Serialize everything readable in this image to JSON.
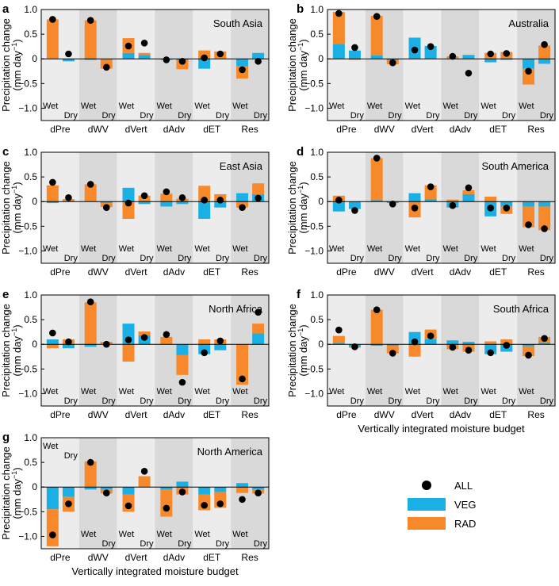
{
  "figure": {
    "y_axis_label_line1": "Precipitation change",
    "y_axis_label_line2_prefix": "(mm day",
    "y_axis_label_line2_sup": "−1",
    "y_axis_label_line2_suffix": ")",
    "x_axis_label": "Vertically integrated moisture budget",
    "colors": {
      "ALL": "#000000",
      "VEG": "#1ab0e6",
      "RAD": "#f7892b",
      "band_light": "#ececec",
      "band_dark": "#d9d9d9"
    },
    "legend": [
      {
        "key": "ALL",
        "label": "ALL",
        "marker": "dot"
      },
      {
        "key": "VEG",
        "label": "VEG",
        "marker": "rect"
      },
      {
        "key": "RAD",
        "label": "RAD",
        "marker": "rect"
      }
    ]
  },
  "chart_data": [
    {
      "panel": "a",
      "title": "South Asia",
      "type": "bar",
      "categories": [
        "dPre",
        "dWV",
        "dVert",
        "dAdv",
        "dET",
        "Res"
      ],
      "sublabels": [
        "Wet",
        "Dry"
      ],
      "sublabel_position": "bottom",
      "ylim": [
        -1.25,
        1.0
      ],
      "yticks": [
        1.0,
        0.5,
        0,
        -0.5,
        -1.0
      ],
      "yticklabels": [
        "1.0",
        "0.5",
        "0",
        "−0.5",
        "−1.0"
      ],
      "xlabel": "",
      "show_xlabel": false,
      "series": [
        {
          "name": "VEG",
          "wet": [
            0.0,
            -0.02,
            0.12,
            -0.02,
            -0.2,
            -0.15
          ],
          "dry": [
            -0.05,
            0.0,
            0.08,
            -0.03,
            0.0,
            0.12
          ]
        },
        {
          "name": "RAD",
          "wet": [
            0.8,
            0.78,
            0.3,
            0.0,
            0.17,
            -0.25
          ],
          "dry": [
            0.0,
            -0.2,
            0.04,
            -0.18,
            0.15,
            0.0
          ]
        },
        {
          "name": "ALL",
          "wet": [
            0.8,
            0.78,
            0.26,
            -0.02,
            0.02,
            -0.22
          ],
          "dry": [
            0.1,
            -0.17,
            0.32,
            -0.05,
            0.1,
            -0.05
          ]
        }
      ]
    },
    {
      "panel": "b",
      "title": "Australia",
      "type": "bar",
      "categories": [
        "dPre",
        "dWV",
        "dVert",
        "dAdv",
        "dET",
        "Res"
      ],
      "sublabels": [
        "Wet",
        "Dry"
      ],
      "sublabel_position": "bottom",
      "ylim": [
        -1.25,
        1.0
      ],
      "yticks": [
        1.0,
        0.5,
        0,
        -0.5,
        -1.0
      ],
      "yticklabels": [
        "1.0",
        "0.5",
        "0",
        "−0.5",
        "−1.0"
      ],
      "xlabel": "",
      "show_xlabel": false,
      "series": [
        {
          "name": "VEG",
          "wet": [
            0.3,
            0.07,
            0.43,
            0.0,
            -0.07,
            -0.2
          ],
          "dry": [
            0.17,
            -0.03,
            0.26,
            0.08,
            -0.02,
            -0.1
          ]
        },
        {
          "name": "RAD",
          "wet": [
            0.65,
            0.8,
            0.0,
            0.05,
            0.12,
            -0.32
          ],
          "dry": [
            -0.02,
            -0.08,
            0.0,
            0.0,
            0.14,
            0.27
          ]
        },
        {
          "name": "ALL",
          "wet": [
            0.92,
            0.86,
            0.18,
            0.05,
            0.1,
            -0.25
          ],
          "dry": [
            0.23,
            -0.08,
            0.25,
            -0.29,
            0.11,
            0.29
          ]
        }
      ]
    },
    {
      "panel": "c",
      "title": "East Asia",
      "type": "bar",
      "categories": [
        "dPre",
        "dWV",
        "dVert",
        "dAdv",
        "dET",
        "Res"
      ],
      "sublabels": [
        "Wet",
        "Dry"
      ],
      "sublabel_position": "bottom",
      "ylim": [
        -1.25,
        1.0
      ],
      "yticks": [
        1.0,
        0.5,
        0,
        -0.5,
        -1.0
      ],
      "yticklabels": [
        "1.0",
        "0.5",
        "0",
        "−0.5",
        "−1.0"
      ],
      "xlabel": "",
      "show_xlabel": false,
      "series": [
        {
          "name": "VEG",
          "wet": [
            -0.03,
            0.0,
            0.28,
            -0.1,
            -0.35,
            0.17
          ],
          "dry": [
            0.0,
            -0.03,
            -0.05,
            -0.05,
            -0.12,
            0.15
          ]
        },
        {
          "name": "RAD",
          "wet": [
            0.33,
            0.35,
            -0.35,
            0.16,
            0.32,
            -0.12
          ],
          "dry": [
            0.05,
            -0.08,
            0.12,
            0.06,
            0.15,
            0.22
          ]
        },
        {
          "name": "ALL",
          "wet": [
            0.39,
            0.35,
            -0.03,
            0.2,
            0.03,
            -0.12
          ],
          "dry": [
            0.08,
            -0.12,
            0.12,
            0.08,
            0.03,
            0.07
          ]
        }
      ]
    },
    {
      "panel": "d",
      "title": "South America",
      "type": "bar",
      "categories": [
        "dPre",
        "dWV",
        "dVert",
        "dAdv",
        "dET",
        "Res"
      ],
      "sublabels": [
        "Wet",
        "Dry"
      ],
      "sublabel_position": "bottom",
      "ylim": [
        -1.25,
        1.0
      ],
      "yticks": [
        1.0,
        0.5,
        0,
        -0.5,
        -1.0
      ],
      "yticklabels": [
        "1.0",
        "0.5",
        "0",
        "−0.5",
        "−1.0"
      ],
      "xlabel": "",
      "show_xlabel": false,
      "series": [
        {
          "name": "VEG",
          "wet": [
            -0.2,
            0.03,
            0.17,
            -0.12,
            -0.3,
            -0.1
          ],
          "dry": [
            -0.15,
            -0.03,
            0.05,
            0.15,
            -0.1,
            -0.1
          ]
        },
        {
          "name": "RAD",
          "wet": [
            0.12,
            0.85,
            -0.32,
            0.04,
            0.1,
            -0.42
          ],
          "dry": [
            0.0,
            0.0,
            0.28,
            0.08,
            -0.15,
            -0.48
          ]
        },
        {
          "name": "ALL",
          "wet": [
            0.03,
            0.88,
            -0.13,
            -0.08,
            -0.13,
            -0.47
          ],
          "dry": [
            -0.18,
            -0.05,
            0.3,
            0.28,
            -0.13,
            -0.55
          ]
        }
      ]
    },
    {
      "panel": "e",
      "title": "North Africa",
      "type": "bar",
      "categories": [
        "dPre",
        "dWV",
        "dVert",
        "dAdv",
        "dET",
        "Res"
      ],
      "sublabels": [
        "Wet",
        "Dry"
      ],
      "sublabel_position": "bottom",
      "ylim": [
        -1.25,
        1.0
      ],
      "yticks": [
        1.0,
        0.5,
        0,
        -0.5,
        -1.0
      ],
      "yticklabels": [
        "1.0",
        "0.5",
        "0",
        "−0.5",
        "−1.0"
      ],
      "xlabel": "",
      "show_xlabel": false,
      "series": [
        {
          "name": "VEG",
          "wet": [
            0.1,
            -0.05,
            0.42,
            0.0,
            -0.2,
            0.0
          ],
          "dry": [
            -0.08,
            0.0,
            0.18,
            -0.22,
            -0.12,
            0.22
          ]
        },
        {
          "name": "RAD",
          "wet": [
            -0.08,
            0.85,
            -0.35,
            0.15,
            0.1,
            -0.82
          ],
          "dry": [
            0.1,
            0.05,
            0.08,
            -0.4,
            0.1,
            0.2
          ]
        },
        {
          "name": "ALL",
          "wet": [
            0.23,
            0.86,
            0.09,
            0.2,
            -0.17,
            -0.7
          ],
          "dry": [
            0.05,
            0.0,
            0.14,
            -0.77,
            0.07,
            0.65
          ]
        }
      ]
    },
    {
      "panel": "f",
      "title": "South Africa",
      "type": "bar",
      "categories": [
        "dPre",
        "dWV",
        "dVert",
        "dAdv",
        "dET",
        "Res"
      ],
      "sublabels": [
        "Wet",
        "Dry"
      ],
      "sublabel_position": "bottom",
      "ylim": [
        -1.25,
        1.0
      ],
      "yticks": [
        1.0,
        0.5,
        0,
        -0.5,
        -1.0
      ],
      "yticklabels": [
        "1.0",
        "0.5",
        "0",
        "−0.5",
        "−1.0"
      ],
      "xlabel": "Vertically integrated moisture budget",
      "show_xlabel": true,
      "series": [
        {
          "name": "VEG",
          "wet": [
            0.03,
            -0.03,
            0.25,
            0.08,
            -0.2,
            -0.04
          ],
          "dry": [
            -0.05,
            -0.03,
            0.1,
            0.05,
            -0.15,
            0.03
          ]
        },
        {
          "name": "RAD",
          "wet": [
            0.14,
            0.7,
            -0.25,
            -0.1,
            0.06,
            -0.2
          ],
          "dry": [
            -0.02,
            -0.15,
            0.2,
            -0.15,
            0.1,
            0.12
          ]
        },
        {
          "name": "ALL",
          "wet": [
            0.29,
            0.7,
            0.05,
            -0.06,
            -0.17,
            -0.22
          ],
          "dry": [
            -0.05,
            -0.18,
            0.17,
            -0.12,
            -0.02,
            0.12
          ]
        }
      ]
    },
    {
      "panel": "g",
      "title": "North America",
      "type": "bar",
      "categories": [
        "dPre",
        "dWV",
        "dVert",
        "dAdv",
        "dET",
        "Res"
      ],
      "sublabels": [
        "Wet",
        "Dry"
      ],
      "sublabel_position": "top",
      "sublabel_position_by_category": [
        "top",
        "bottom",
        "bottom",
        "bottom",
        "bottom",
        "bottom"
      ],
      "ylim": [
        -1.25,
        1.0
      ],
      "yticks": [
        1.0,
        0.5,
        0,
        -0.5,
        -1.0
      ],
      "yticklabels": [
        "1.0",
        "0.5",
        "0",
        "−0.5",
        "−1.0"
      ],
      "xlabel": "Vertically integrated moisture budget",
      "show_xlabel": true,
      "series": [
        {
          "name": "VEG",
          "wet": [
            -0.45,
            -0.05,
            -0.15,
            -0.05,
            -0.15,
            0.08
          ],
          "dry": [
            -0.2,
            -0.05,
            0.0,
            0.11,
            -0.1,
            -0.05
          ]
        },
        {
          "name": "RAD",
          "wet": [
            -0.75,
            0.52,
            -0.35,
            -0.55,
            -0.32,
            -0.12
          ],
          "dry": [
            -0.3,
            -0.08,
            0.22,
            -0.15,
            -0.32,
            -0.08
          ]
        },
        {
          "name": "ALL",
          "wet": [
            -0.97,
            0.5,
            -0.38,
            -0.43,
            -0.37,
            -0.25
          ],
          "dry": [
            -0.34,
            -0.12,
            0.32,
            -0.1,
            -0.34,
            -0.12
          ]
        }
      ]
    }
  ]
}
